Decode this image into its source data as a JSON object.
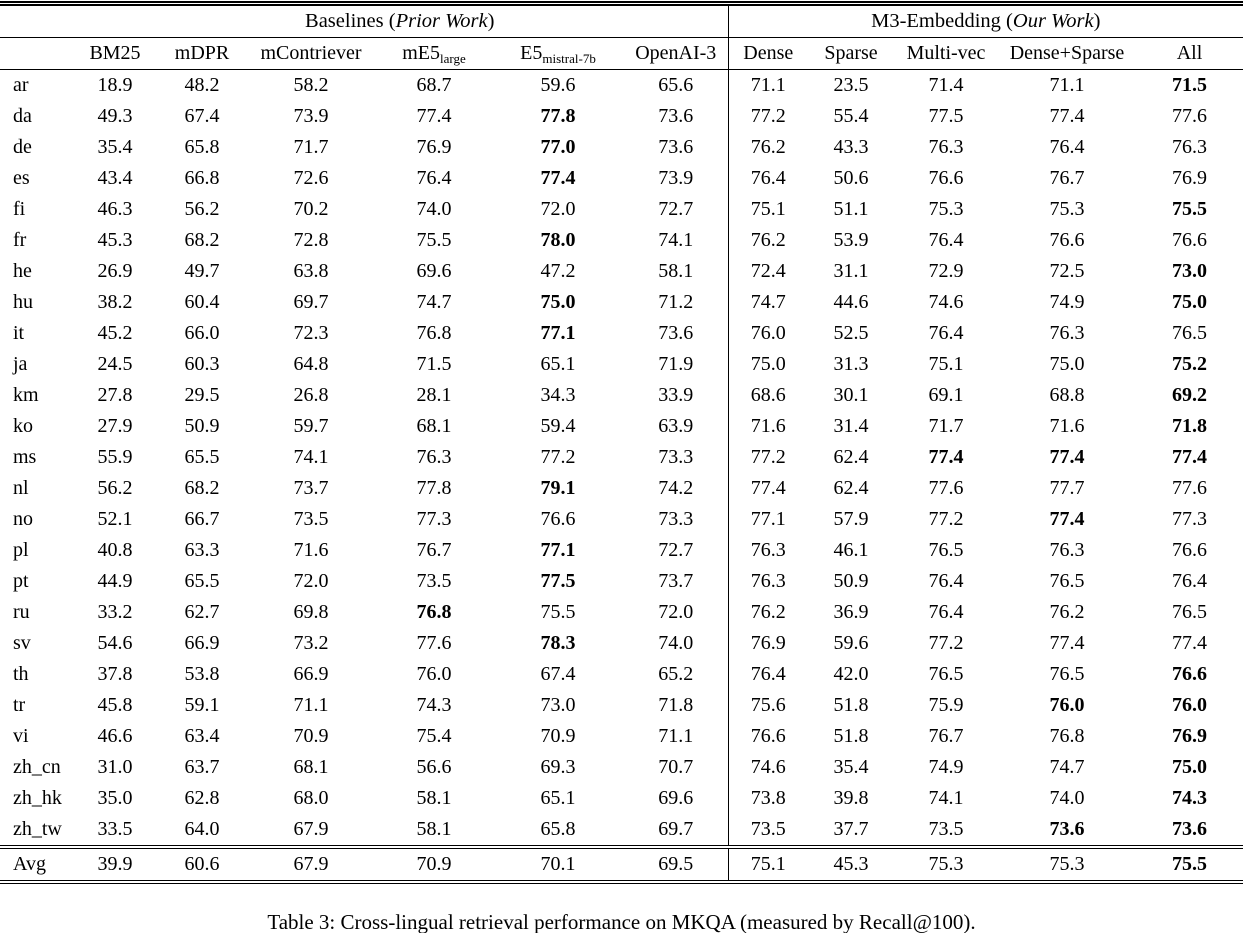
{
  "table": {
    "group_headers": {
      "baselines": {
        "pre": "Baselines (",
        "italic": "Prior Work",
        "post": ")"
      },
      "m3": {
        "pre": "M3-Embedding (",
        "italic": "Our Work",
        "post": ")"
      }
    },
    "columns": [
      {
        "base": "BM25",
        "sub": ""
      },
      {
        "base": "mDPR",
        "sub": ""
      },
      {
        "base": "mContriever",
        "sub": ""
      },
      {
        "base": "mE5",
        "sub": "large"
      },
      {
        "base": "E5",
        "sub": "mistral-7b"
      },
      {
        "base": "OpenAI-3",
        "sub": ""
      },
      {
        "base": "Dense",
        "sub": ""
      },
      {
        "base": "Sparse",
        "sub": ""
      },
      {
        "base": "Multi-vec",
        "sub": ""
      },
      {
        "base": "Dense+Sparse",
        "sub": ""
      },
      {
        "base": "All",
        "sub": ""
      }
    ],
    "rows": [
      {
        "lang": "ar",
        "values": [
          "18.9",
          "48.2",
          "58.2",
          "68.7",
          "59.6",
          "65.6",
          "71.1",
          "23.5",
          "71.4",
          "71.1",
          "71.5"
        ],
        "bold": [
          10
        ]
      },
      {
        "lang": "da",
        "values": [
          "49.3",
          "67.4",
          "73.9",
          "77.4",
          "77.8",
          "73.6",
          "77.2",
          "55.4",
          "77.5",
          "77.4",
          "77.6"
        ],
        "bold": [
          4
        ]
      },
      {
        "lang": "de",
        "values": [
          "35.4",
          "65.8",
          "71.7",
          "76.9",
          "77.0",
          "73.6",
          "76.2",
          "43.3",
          "76.3",
          "76.4",
          "76.3"
        ],
        "bold": [
          4
        ]
      },
      {
        "lang": "es",
        "values": [
          "43.4",
          "66.8",
          "72.6",
          "76.4",
          "77.4",
          "73.9",
          "76.4",
          "50.6",
          "76.6",
          "76.7",
          "76.9"
        ],
        "bold": [
          4
        ]
      },
      {
        "lang": "fi",
        "values": [
          "46.3",
          "56.2",
          "70.2",
          "74.0",
          "72.0",
          "72.7",
          "75.1",
          "51.1",
          "75.3",
          "75.3",
          "75.5"
        ],
        "bold": [
          10
        ]
      },
      {
        "lang": "fr",
        "values": [
          "45.3",
          "68.2",
          "72.8",
          "75.5",
          "78.0",
          "74.1",
          "76.2",
          "53.9",
          "76.4",
          "76.6",
          "76.6"
        ],
        "bold": [
          4
        ]
      },
      {
        "lang": "he",
        "values": [
          "26.9",
          "49.7",
          "63.8",
          "69.6",
          "47.2",
          "58.1",
          "72.4",
          "31.1",
          "72.9",
          "72.5",
          "73.0"
        ],
        "bold": [
          10
        ]
      },
      {
        "lang": "hu",
        "values": [
          "38.2",
          "60.4",
          "69.7",
          "74.7",
          "75.0",
          "71.2",
          "74.7",
          "44.6",
          "74.6",
          "74.9",
          "75.0"
        ],
        "bold": [
          4,
          10
        ]
      },
      {
        "lang": "it",
        "values": [
          "45.2",
          "66.0",
          "72.3",
          "76.8",
          "77.1",
          "73.6",
          "76.0",
          "52.5",
          "76.4",
          "76.3",
          "76.5"
        ],
        "bold": [
          4
        ]
      },
      {
        "lang": "ja",
        "values": [
          "24.5",
          "60.3",
          "64.8",
          "71.5",
          "65.1",
          "71.9",
          "75.0",
          "31.3",
          "75.1",
          "75.0",
          "75.2"
        ],
        "bold": [
          10
        ]
      },
      {
        "lang": "km",
        "values": [
          "27.8",
          "29.5",
          "26.8",
          "28.1",
          "34.3",
          "33.9",
          "68.6",
          "30.1",
          "69.1",
          "68.8",
          "69.2"
        ],
        "bold": [
          10
        ]
      },
      {
        "lang": "ko",
        "values": [
          "27.9",
          "50.9",
          "59.7",
          "68.1",
          "59.4",
          "63.9",
          "71.6",
          "31.4",
          "71.7",
          "71.6",
          "71.8"
        ],
        "bold": [
          10
        ]
      },
      {
        "lang": "ms",
        "values": [
          "55.9",
          "65.5",
          "74.1",
          "76.3",
          "77.2",
          "73.3",
          "77.2",
          "62.4",
          "77.4",
          "77.4",
          "77.4"
        ],
        "bold": [
          8,
          9,
          10
        ]
      },
      {
        "lang": "nl",
        "values": [
          "56.2",
          "68.2",
          "73.7",
          "77.8",
          "79.1",
          "74.2",
          "77.4",
          "62.4",
          "77.6",
          "77.7",
          "77.6"
        ],
        "bold": [
          4
        ]
      },
      {
        "lang": "no",
        "values": [
          "52.1",
          "66.7",
          "73.5",
          "77.3",
          "76.6",
          "73.3",
          "77.1",
          "57.9",
          "77.2",
          "77.4",
          "77.3"
        ],
        "bold": [
          9
        ]
      },
      {
        "lang": "pl",
        "values": [
          "40.8",
          "63.3",
          "71.6",
          "76.7",
          "77.1",
          "72.7",
          "76.3",
          "46.1",
          "76.5",
          "76.3",
          "76.6"
        ],
        "bold": [
          4
        ]
      },
      {
        "lang": "pt",
        "values": [
          "44.9",
          "65.5",
          "72.0",
          "73.5",
          "77.5",
          "73.7",
          "76.3",
          "50.9",
          "76.4",
          "76.5",
          "76.4"
        ],
        "bold": [
          4
        ]
      },
      {
        "lang": "ru",
        "values": [
          "33.2",
          "62.7",
          "69.8",
          "76.8",
          "75.5",
          "72.0",
          "76.2",
          "36.9",
          "76.4",
          "76.2",
          "76.5"
        ],
        "bold": [
          3
        ]
      },
      {
        "lang": "sv",
        "values": [
          "54.6",
          "66.9",
          "73.2",
          "77.6",
          "78.3",
          "74.0",
          "76.9",
          "59.6",
          "77.2",
          "77.4",
          "77.4"
        ],
        "bold": [
          4
        ]
      },
      {
        "lang": "th",
        "values": [
          "37.8",
          "53.8",
          "66.9",
          "76.0",
          "67.4",
          "65.2",
          "76.4",
          "42.0",
          "76.5",
          "76.5",
          "76.6"
        ],
        "bold": [
          10
        ]
      },
      {
        "lang": "tr",
        "values": [
          "45.8",
          "59.1",
          "71.1",
          "74.3",
          "73.0",
          "71.8",
          "75.6",
          "51.8",
          "75.9",
          "76.0",
          "76.0"
        ],
        "bold": [
          9,
          10
        ]
      },
      {
        "lang": "vi",
        "values": [
          "46.6",
          "63.4",
          "70.9",
          "75.4",
          "70.9",
          "71.1",
          "76.6",
          "51.8",
          "76.7",
          "76.8",
          "76.9"
        ],
        "bold": [
          10
        ]
      },
      {
        "lang": "zh_cn",
        "values": [
          "31.0",
          "63.7",
          "68.1",
          "56.6",
          "69.3",
          "70.7",
          "74.6",
          "35.4",
          "74.9",
          "74.7",
          "75.0"
        ],
        "bold": [
          10
        ]
      },
      {
        "lang": "zh_hk",
        "values": [
          "35.0",
          "62.8",
          "68.0",
          "58.1",
          "65.1",
          "69.6",
          "73.8",
          "39.8",
          "74.1",
          "74.0",
          "74.3"
        ],
        "bold": [
          10
        ]
      },
      {
        "lang": "zh_tw",
        "values": [
          "33.5",
          "64.0",
          "67.9",
          "58.1",
          "65.8",
          "69.7",
          "73.5",
          "37.7",
          "73.5",
          "73.6",
          "73.6"
        ],
        "bold": [
          9,
          10
        ]
      },
      {
        "lang": "Avg",
        "values": [
          "39.9",
          "60.6",
          "67.9",
          "70.9",
          "70.1",
          "69.5",
          "75.1",
          "45.3",
          "75.3",
          "75.3",
          "75.5"
        ],
        "bold": [
          10
        ]
      }
    ]
  },
  "caption": "Table 3: Cross-lingual retrieval performance on MKQA (measured by Recall@100)."
}
